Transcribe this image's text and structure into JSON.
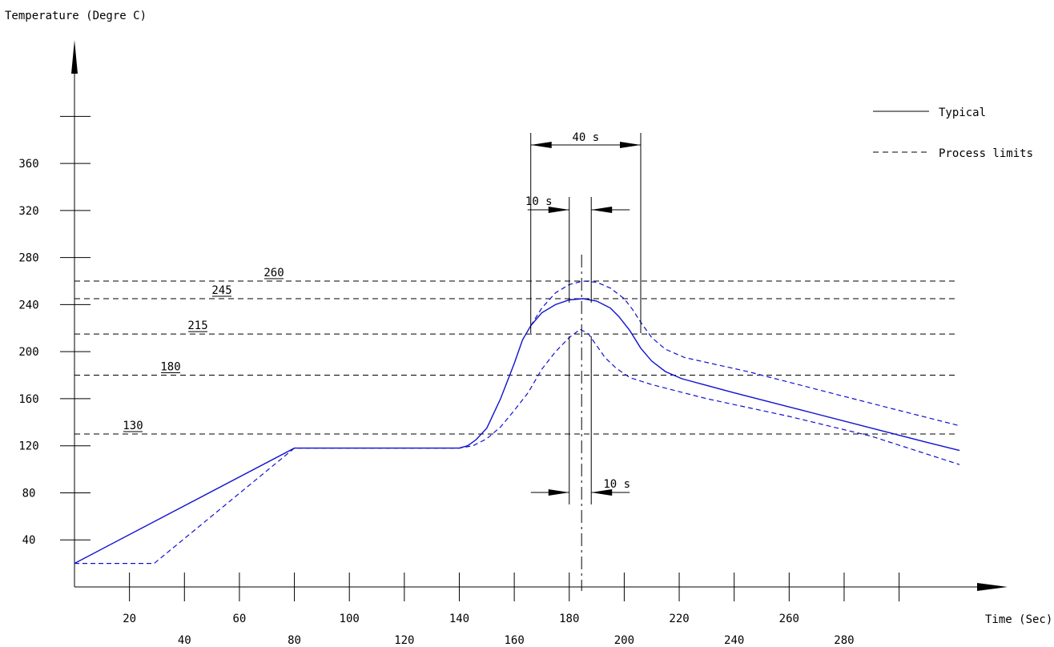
{
  "chart_data": {
    "type": "line",
    "ylabel": "Temperature (Degre C)",
    "xlabel": "Time (Sec)",
    "y_ticks": [
      40,
      80,
      120,
      160,
      200,
      240,
      280,
      320,
      360
    ],
    "x_ticks": [
      20,
      40,
      60,
      80,
      100,
      120,
      140,
      160,
      180,
      200,
      220,
      240,
      260,
      280
    ],
    "legend": {
      "position": "top-right",
      "typical": "Typical",
      "limits": "Process limits"
    },
    "reference_lines": [
      {
        "y": 260,
        "label": "260"
      },
      {
        "y": 245,
        "label": "245"
      },
      {
        "y": 215,
        "label": "215"
      },
      {
        "y": 180,
        "label": "180"
      },
      {
        "y": 130,
        "label": "130"
      }
    ],
    "series": [
      {
        "style": "solid",
        "points": [
          [
            0,
            20
          ],
          [
            80,
            118
          ],
          [
            140,
            118
          ],
          [
            143,
            120
          ],
          [
            146,
            125
          ],
          [
            150,
            135
          ],
          [
            155,
            160
          ],
          [
            160,
            190
          ],
          [
            163,
            210
          ],
          [
            166,
            222
          ],
          [
            170,
            233
          ],
          [
            175,
            240
          ],
          [
            180,
            244
          ],
          [
            185,
            245
          ],
          [
            190,
            243
          ],
          [
            195,
            237
          ],
          [
            198,
            230
          ],
          [
            202,
            218
          ],
          [
            206,
            203
          ],
          [
            210,
            192
          ],
          [
            215,
            183
          ],
          [
            221,
            177
          ],
          [
            240,
            165
          ],
          [
            265,
            150
          ],
          [
            290,
            135
          ],
          [
            310,
            123
          ],
          [
            322,
            116
          ]
        ]
      },
      {
        "style": "dashed",
        "points": [
          [
            0,
            20
          ],
          [
            29,
            20
          ],
          [
            80,
            118
          ],
          [
            140,
            118
          ],
          [
            145,
            120
          ],
          [
            150,
            126
          ],
          [
            155,
            136
          ],
          [
            160,
            150
          ],
          [
            165,
            165
          ],
          [
            170,
            185
          ],
          [
            175,
            200
          ],
          [
            180,
            212
          ],
          [
            184,
            219
          ],
          [
            187,
            215
          ],
          [
            190,
            205
          ],
          [
            193,
            195
          ],
          [
            197,
            186
          ],
          [
            202,
            178
          ],
          [
            210,
            172
          ],
          [
            230,
            160
          ],
          [
            260,
            145
          ],
          [
            290,
            128
          ],
          [
            322,
            104
          ]
        ]
      },
      {
        "style": "dashed",
        "points": [
          [
            166,
            222
          ],
          [
            170,
            237
          ],
          [
            175,
            250
          ],
          [
            180,
            257
          ],
          [
            185,
            260
          ],
          [
            190,
            259
          ],
          [
            195,
            254
          ],
          [
            200,
            245
          ],
          [
            203,
            236
          ],
          [
            206,
            225
          ],
          [
            210,
            212
          ],
          [
            215,
            202
          ],
          [
            222,
            195
          ],
          [
            245,
            183
          ],
          [
            270,
            168
          ],
          [
            295,
            153
          ],
          [
            322,
            137
          ]
        ]
      }
    ],
    "annotations": [
      {
        "text": "40 s",
        "x_start": 166,
        "x_end": 206
      },
      {
        "text": "10 s",
        "x_start": 180,
        "x_end": 188
      },
      {
        "text": "10 s",
        "x_start": 180,
        "x_end": 188
      }
    ]
  }
}
